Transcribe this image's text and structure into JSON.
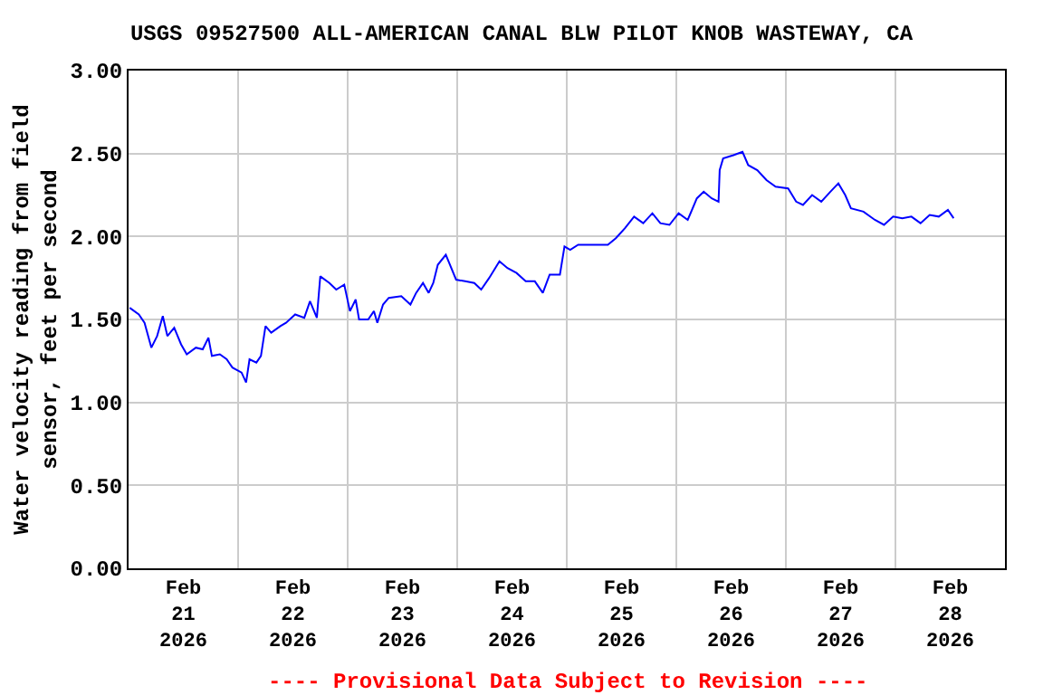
{
  "chart_data": {
    "type": "line",
    "title": "USGS 09527500 ALL-AMERICAN CANAL BLW PILOT KNOB WASTEWAY, CA",
    "ylabel": "Water velocity reading from field\nsensor, feet per second",
    "annotations": [
      "---- Provisional Data Subject to Revision ----"
    ],
    "x": [
      "2026-02-21T00:15",
      "2026-02-21T02:15",
      "2026-02-21T03:30",
      "2026-02-21T05:00",
      "2026-02-21T06:15",
      "2026-02-21T07:30",
      "2026-02-21T08:30",
      "2026-02-21T10:00",
      "2026-02-21T11:30",
      "2026-02-21T12:45",
      "2026-02-21T14:45",
      "2026-02-21T16:15",
      "2026-02-21T17:30",
      "2026-02-21T18:15",
      "2026-02-21T20:00",
      "2026-02-21T21:30",
      "2026-02-21T22:45",
      "2026-02-22T00:45",
      "2026-02-22T01:45",
      "2026-02-22T02:30",
      "2026-02-22T04:00",
      "2026-02-22T05:00",
      "2026-02-22T06:00",
      "2026-02-22T07:15",
      "2026-02-22T09:15",
      "2026-02-22T10:30",
      "2026-02-22T12:30",
      "2026-02-22T14:30",
      "2026-02-22T15:45",
      "2026-02-22T17:15",
      "2026-02-22T18:00",
      "2026-02-22T20:00",
      "2026-02-22T21:30",
      "2026-02-22T23:15",
      "2026-02-23T00:30",
      "2026-02-23T01:45",
      "2026-02-23T02:30",
      "2026-02-23T04:30",
      "2026-02-23T05:45",
      "2026-02-23T06:30",
      "2026-02-23T07:45",
      "2026-02-23T09:00",
      "2026-02-23T11:45",
      "2026-02-23T13:45",
      "2026-02-23T15:00",
      "2026-02-23T16:30",
      "2026-02-23T17:45",
      "2026-02-23T18:45",
      "2026-02-23T19:45",
      "2026-02-23T21:30",
      "2026-02-23T22:15",
      "2026-02-23T23:45",
      "2026-02-24T01:45",
      "2026-02-24T03:45",
      "2026-02-24T05:15",
      "2026-02-24T07:00",
      "2026-02-24T09:15",
      "2026-02-24T11:00",
      "2026-02-24T13:00",
      "2026-02-24T15:00",
      "2026-02-24T17:00",
      "2026-02-24T18:45",
      "2026-02-24T20:15",
      "2026-02-24T22:30",
      "2026-02-24T23:30",
      "2026-02-25T00:45",
      "2026-02-25T02:30",
      "2026-02-25T04:45",
      "2026-02-25T06:45",
      "2026-02-25T09:00",
      "2026-02-25T10:45",
      "2026-02-25T12:45",
      "2026-02-25T14:45",
      "2026-02-25T16:45",
      "2026-02-25T18:45",
      "2026-02-25T20:30",
      "2026-02-25T22:30",
      "2026-02-26T00:30",
      "2026-02-26T02:30",
      "2026-02-26T04:30",
      "2026-02-26T06:00",
      "2026-02-26T07:45",
      "2026-02-26T09:15",
      "2026-02-26T09:30",
      "2026-02-26T10:15",
      "2026-02-26T12:30",
      "2026-02-26T14:30",
      "2026-02-26T15:45",
      "2026-02-26T17:45",
      "2026-02-26T19:45",
      "2026-02-26T21:45",
      "2026-02-27T00:30",
      "2026-02-27T02:15",
      "2026-02-27T03:45",
      "2026-02-27T05:45",
      "2026-02-27T07:45",
      "2026-02-27T09:45",
      "2026-02-27T11:30",
      "2026-02-27T13:00",
      "2026-02-27T14:15",
      "2026-02-27T17:00",
      "2026-02-27T19:30",
      "2026-02-27T21:30",
      "2026-02-27T23:30",
      "2026-02-28T01:30",
      "2026-02-28T03:30",
      "2026-02-28T05:30",
      "2026-02-28T07:30",
      "2026-02-28T09:30",
      "2026-02-28T11:30",
      "2026-02-28T12:45"
    ],
    "series": [
      {
        "color": "#0000ff",
        "values": [
          1.57,
          1.53,
          1.48,
          1.33,
          1.4,
          1.52,
          1.4,
          1.45,
          1.35,
          1.29,
          1.33,
          1.32,
          1.39,
          1.28,
          1.29,
          1.26,
          1.21,
          1.18,
          1.12,
          1.26,
          1.24,
          1.28,
          1.46,
          1.42,
          1.46,
          1.48,
          1.53,
          1.51,
          1.61,
          1.51,
          1.76,
          1.72,
          1.68,
          1.71,
          1.55,
          1.62,
          1.5,
          1.5,
          1.55,
          1.48,
          1.59,
          1.63,
          1.64,
          1.59,
          1.66,
          1.72,
          1.66,
          1.72,
          1.83,
          1.89,
          1.84,
          1.74,
          1.73,
          1.72,
          1.68,
          1.75,
          1.85,
          1.81,
          1.78,
          1.73,
          1.73,
          1.66,
          1.77,
          1.77,
          1.94,
          1.92,
          1.95,
          1.95,
          1.95,
          1.95,
          1.99,
          2.05,
          2.12,
          2.08,
          2.14,
          2.08,
          2.07,
          2.14,
          2.1,
          2.23,
          2.27,
          2.23,
          2.21,
          2.4,
          2.47,
          2.49,
          2.51,
          2.43,
          2.4,
          2.34,
          2.3,
          2.29,
          2.21,
          2.19,
          2.25,
          2.21,
          2.27,
          2.32,
          2.25,
          2.17,
          2.15,
          2.1,
          2.07,
          2.12,
          2.11,
          2.12,
          2.08,
          2.13,
          2.12,
          2.16,
          2.11
        ]
      }
    ],
    "xlim": [
      "2026-02-21T00:00",
      "2026-03-01T00:00"
    ],
    "xticks": [
      {
        "value": "2026-02-21T12:00",
        "label": "Feb\n21\n2026"
      },
      {
        "value": "2026-02-22T12:00",
        "label": "Feb\n22\n2026"
      },
      {
        "value": "2026-02-23T12:00",
        "label": "Feb\n23\n2026"
      },
      {
        "value": "2026-02-24T12:00",
        "label": "Feb\n24\n2026"
      },
      {
        "value": "2026-02-25T12:00",
        "label": "Feb\n25\n2026"
      },
      {
        "value": "2026-02-26T12:00",
        "label": "Feb\n26\n2026"
      },
      {
        "value": "2026-02-27T12:00",
        "label": "Feb\n27\n2026"
      },
      {
        "value": "2026-02-28T12:00",
        "label": "Feb\n28\n2026"
      },
      {
        "value": "2026-02-22T00:00",
        "label": null
      },
      {
        "value": "2026-02-23T00:00",
        "label": null
      },
      {
        "value": "2026-02-24T00:00",
        "label": null
      },
      {
        "value": "2026-02-25T00:00",
        "label": null
      },
      {
        "value": "2026-02-26T00:00",
        "label": null
      },
      {
        "value": "2026-02-27T00:00",
        "label": null
      },
      {
        "value": "2026-02-28T00:00",
        "label": null
      }
    ],
    "ylim": [
      0,
      3
    ],
    "yticks": [
      {
        "value": 0,
        "label": "0.00"
      },
      {
        "value": 0.5,
        "label": "0.50"
      },
      {
        "value": 1,
        "label": "1.00"
      },
      {
        "value": 1.5,
        "label": "1.50"
      },
      {
        "value": 2,
        "label": "2.00"
      },
      {
        "value": 2.5,
        "label": "2.50"
      },
      {
        "value": 3,
        "label": "3.00"
      }
    ],
    "grid": true,
    "marker": "none",
    "line_style": "solid"
  }
}
